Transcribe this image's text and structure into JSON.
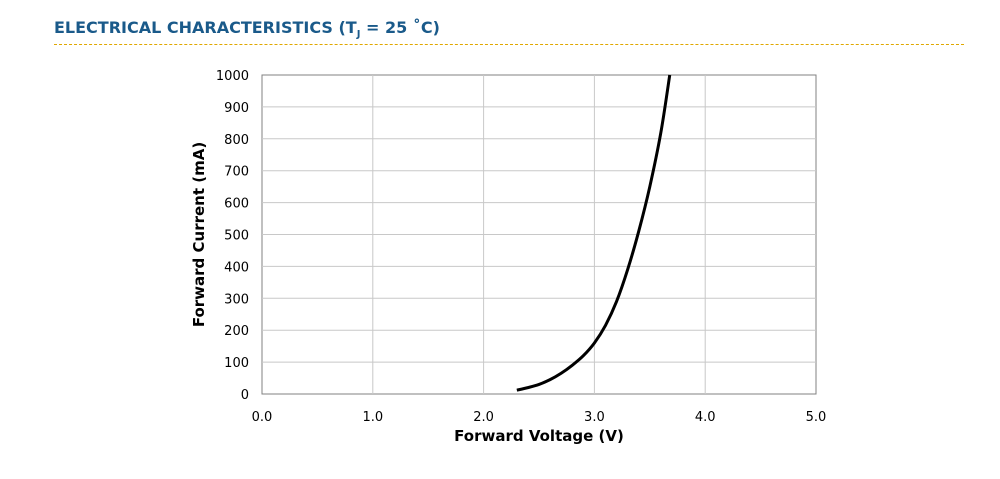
{
  "header": {
    "title_prefix": "ELECTRICAL CHARACTERISTICS (T",
    "title_sub": "J",
    "title_suffix": " = 25 ˚C)",
    "color": "#1a5a8a",
    "rule_color": "#e0a800"
  },
  "chart_data": {
    "type": "line",
    "xlabel": "Forward Voltage (V)",
    "ylabel": "Forward Current (mA)",
    "xlim": [
      0,
      5
    ],
    "ylim": [
      0,
      1000
    ],
    "x_ticks": [
      "0.0",
      "1.0",
      "2.0",
      "3.0",
      "4.0",
      "5.0"
    ],
    "y_ticks": [
      "0",
      "100",
      "200",
      "300",
      "400",
      "500",
      "600",
      "700",
      "800",
      "900",
      "1000"
    ],
    "grid": true,
    "line_color": "#000000",
    "series": [
      {
        "x": [
          2.3,
          2.4,
          2.5,
          2.6,
          2.7,
          2.8,
          2.9,
          3.0,
          3.1,
          3.2,
          3.3,
          3.4,
          3.5,
          3.6,
          3.68
        ],
        "values": [
          12,
          20,
          30,
          45,
          65,
          90,
          120,
          160,
          215,
          290,
          390,
          510,
          650,
          820,
          1000
        ]
      }
    ]
  }
}
